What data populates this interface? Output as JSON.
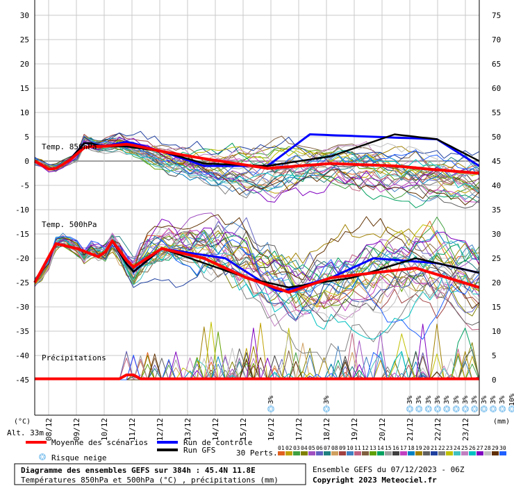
{
  "chart_data": {
    "type": "line",
    "title": "Diagramme des ensembles GEFS sur 384h : 45.4N 11.8E",
    "subtitle": "Températures 850hPa et 500hPa (°C) , précipitations (mm)",
    "left_axis": {
      "unit_label": "(°C)",
      "ticks": [
        30,
        25,
        20,
        15,
        10,
        5,
        0,
        -5,
        -10,
        -15,
        -20,
        -25,
        -30,
        -35,
        -40,
        -45
      ],
      "range": [
        -45,
        30
      ]
    },
    "right_axis": {
      "unit_label": "(mm)",
      "ticks": [
        75,
        70,
        65,
        60,
        55,
        50,
        45,
        40,
        35,
        30,
        25,
        20,
        15,
        10,
        5,
        0
      ],
      "range": [
        0,
        75
      ]
    },
    "x_ticks": [
      "08/12",
      "09/12",
      "10/12",
      "11/12",
      "12/12",
      "13/12",
      "14/12",
      "15/12",
      "16/12",
      "17/12",
      "18/12",
      "19/12",
      "20/12",
      "21/12",
      "22/12",
      "23/12"
    ],
    "panel_labels": {
      "t850": "Temp. 850hPa",
      "t500": "Temp. 500hPa",
      "precip": "Précipitations"
    },
    "altitude": "Alt. 33m",
    "legend": {
      "mean": "Moyenne des scénarios",
      "control": "Run de contrôle",
      "gfs": "Run GFS",
      "perts": "30 Perts.",
      "snow": "Risque neige"
    },
    "snow_markers": [
      {
        "date_index": 8.0,
        "label": "3%"
      },
      {
        "date_index": 10.0,
        "label": "3%"
      },
      {
        "date_index": 13.0,
        "label": "3%"
      },
      {
        "date_index": 13.33,
        "label": "3%"
      },
      {
        "date_index": 13.67,
        "label": "3%"
      },
      {
        "date_index": 14.0,
        "label": "3%"
      },
      {
        "date_index": 14.33,
        "label": "3%"
      },
      {
        "date_index": 14.67,
        "label": "3%"
      },
      {
        "date_index": 15.0,
        "label": "3%"
      },
      {
        "date_index": 15.33,
        "label": "3%"
      },
      {
        "date_index": 15.67,
        "label": "3%"
      },
      {
        "date_index": 16.0,
        "label": "3%"
      },
      {
        "date_index": 16.33,
        "label": "3%"
      },
      {
        "date_index": 16.67,
        "label": "10%"
      },
      {
        "date_index": 17.0,
        "label": "3%"
      }
    ],
    "pert_numbers": [
      "01",
      "02",
      "03",
      "04",
      "05",
      "06",
      "07",
      "08",
      "09",
      "10",
      "11",
      "12",
      "13",
      "14",
      "15",
      "16",
      "17",
      "18",
      "19",
      "20",
      "21",
      "22",
      "23",
      "24",
      "25",
      "26",
      "27",
      "28",
      "29",
      "30"
    ],
    "pert_colors": [
      "#e06020",
      "#c0a000",
      "#40a040",
      "#808000",
      "#a050c0",
      "#6060c0",
      "#208080",
      "#d0a060",
      "#a04040",
      "#4080c0",
      "#c06080",
      "#806040",
      "#60a000",
      "#00a060",
      "#a0a0a0",
      "#404040",
      "#c040c0",
      "#0080c0",
      "#a08000",
      "#606060",
      "#2040a0",
      "#808080",
      "#c0c000",
      "#40c0c0",
      "#c080c0",
      "#00c0c0",
      "#8000c0",
      "#c0c0c0",
      "#603000",
      "#2060ff"
    ],
    "run_info": "Ensemble GEFS du 07/12/2023 - 06Z",
    "copyright": "Copyright 2023 Meteociel.fr"
  },
  "colors": {
    "mean": "#ff0000",
    "control": "#0000ff",
    "gfs": "#000000",
    "grid": "#c8c8c8",
    "zero": "#808080"
  }
}
